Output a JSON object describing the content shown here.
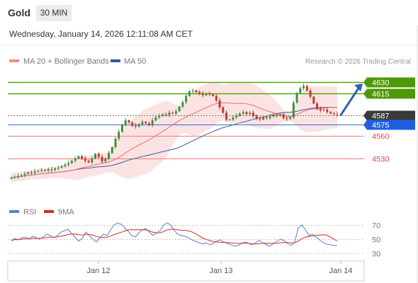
{
  "header": {
    "instrument": "Gold",
    "timeframe": "30 MIN",
    "datetime": "Wednesday, January 14, 2026 12:11:08 AM CET"
  },
  "legend": {
    "ma20_label": "MA 20 + Bollinger Bands",
    "ma50_label": "MA 50",
    "source": "Research © 2026 Trading Central"
  },
  "colors": {
    "resistance": "#5aa30e",
    "current": "#4a4a4a",
    "pivot": "#2f6fdb",
    "support": "#f07a7a",
    "candle_up": "#3f8f3f",
    "candle_down": "#c0392b",
    "ma50": "#3a5a9c",
    "ma20": "#f06b6b",
    "bollinger": "#fbdada",
    "rsi": "#5b7fd6",
    "rsi_ma": "#e02424",
    "arrow": "#2a63b5"
  },
  "chart_data": [
    {
      "type": "candlestick",
      "x_ticks": [
        "Jan 12",
        "Jan 13",
        "Jan 14"
      ],
      "ylim": [
        4480,
        4645
      ],
      "levels": [
        {
          "value": 4630,
          "label": "4630",
          "kind": "resistance"
        },
        {
          "value": 4615,
          "label": "4615",
          "kind": "resistance"
        },
        {
          "value": 4587,
          "label": "4587",
          "kind": "current"
        },
        {
          "value": 4575,
          "label": "4575",
          "kind": "pivot"
        },
        {
          "value": 4560,
          "label": "4560",
          "kind": "support"
        },
        {
          "value": 4530,
          "label": "4530",
          "kind": "support"
        }
      ],
      "close_series": [
        4505,
        4506,
        4507,
        4508,
        4510,
        4512,
        4511,
        4513,
        4514,
        4515,
        4514,
        4516,
        4515,
        4517,
        4518,
        4520,
        4522,
        4524,
        4527,
        4530,
        4533,
        4530,
        4527,
        4525,
        4530,
        4536,
        4532,
        4526,
        4530,
        4537,
        4545,
        4556,
        4565,
        4574,
        4580,
        4577,
        4573,
        4572,
        4575,
        4578,
        4576,
        4574,
        4580,
        4584,
        4586,
        4588,
        4587,
        4590,
        4589,
        4592,
        4598,
        4604,
        4612,
        4618,
        4619,
        4617,
        4615,
        4613,
        4615,
        4614,
        4612,
        4606,
        4597,
        4590,
        4581,
        4581,
        4584,
        4586,
        4589,
        4591,
        4588,
        4590,
        4586,
        4582,
        4581,
        4584,
        4583,
        4585,
        4587,
        4586,
        4588,
        4583,
        4582,
        4584,
        4603,
        4616,
        4622,
        4625,
        4619,
        4611,
        4602,
        4595,
        4593,
        4594,
        4591,
        4589,
        4588,
        4587
      ],
      "moving_averages": [
        "MA 20 + Bollinger Bands",
        "MA 50"
      ],
      "forecast_arrow": {
        "from": 4587,
        "to": 4630
      }
    },
    {
      "type": "line",
      "name": "RSI",
      "series": [
        {
          "name": "RSI"
        },
        {
          "name": "9MA"
        }
      ],
      "ylim": [
        20,
        80
      ],
      "y_ticks": [
        70,
        50,
        30
      ],
      "rsi_series": [
        48,
        51,
        49,
        52,
        53,
        50,
        54,
        52,
        50,
        53,
        57,
        55,
        52,
        55,
        60,
        62,
        64,
        58,
        53,
        47,
        51,
        60,
        55,
        50,
        46,
        52,
        57,
        55,
        63,
        70,
        73,
        71,
        66,
        61,
        55,
        53,
        59,
        63,
        65,
        60,
        55,
        59,
        62,
        70,
        73,
        70,
        62,
        57,
        55,
        54,
        52,
        49,
        47,
        45,
        43,
        45,
        42,
        44,
        47,
        49,
        46,
        44,
        42,
        40,
        41,
        44,
        46,
        44,
        42,
        45,
        48,
        45,
        42,
        40,
        44,
        47,
        50,
        48,
        44,
        41,
        46,
        66,
        70,
        64,
        55,
        57,
        53,
        49,
        45,
        43,
        42,
        41,
        41
      ]
    }
  ]
}
